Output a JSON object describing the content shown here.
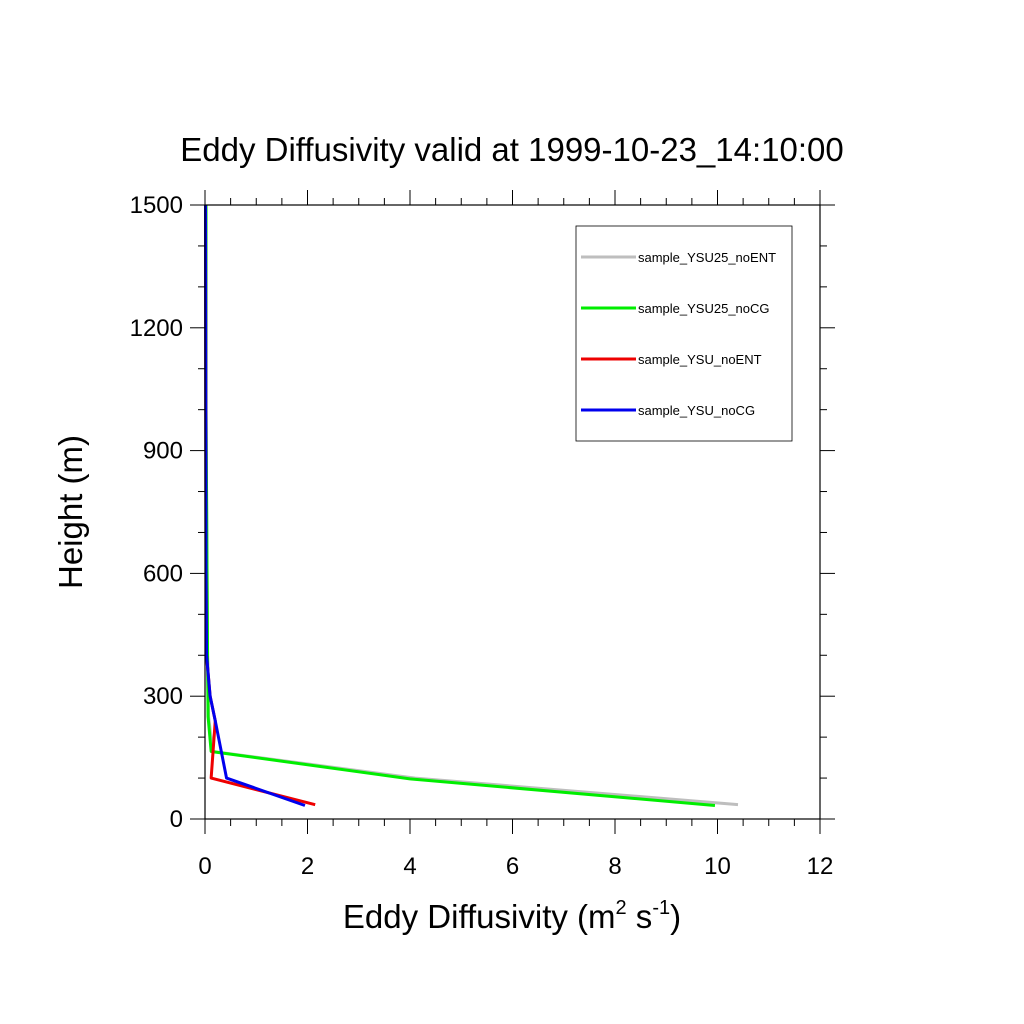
{
  "chart_data": {
    "type": "line",
    "title": "Eddy Diffusivity valid at 1999-10-23_14:10:00",
    "xlabel": {
      "base": "Eddy Diffusivity (m",
      "sup1": "2",
      "mid": " s",
      "sup2": "-1",
      "end": ")"
    },
    "ylabel": "Height (m)",
    "xlim": [
      0,
      12
    ],
    "ylim": [
      0,
      1500
    ],
    "xticks": [
      0,
      2,
      4,
      6,
      8,
      10,
      12
    ],
    "xtick_labels": [
      "0",
      "2",
      "4",
      "6",
      "8",
      "10",
      "12"
    ],
    "yticks": [
      0,
      300,
      600,
      900,
      1200,
      1500
    ],
    "ytick_labels": [
      "0",
      "300",
      "600",
      "900",
      "1200",
      "1500"
    ],
    "grid": false,
    "legend_position": "top-right",
    "series": [
      {
        "name": "sample_YSU25_noENT",
        "color": "#bebebe",
        "x": [
          10.4,
          4.1,
          0.15,
          0.07,
          0.05,
          0.04,
          0.02,
          0.02
        ],
        "y": [
          35,
          100,
          165,
          250,
          400,
          600,
          1000,
          1500
        ]
      },
      {
        "name": "sample_YSU25_noCG",
        "color": "#00ee00",
        "x": [
          9.95,
          4.0,
          0.12,
          0.06,
          0.05,
          0.04,
          0.02,
          0.02
        ],
        "y": [
          33,
          98,
          165,
          250,
          400,
          600,
          1000,
          1500
        ]
      },
      {
        "name": "sample_YSU_noENT",
        "color": "#ee0000",
        "x": [
          2.15,
          0.12,
          0.2,
          0.1,
          0.03,
          0.02,
          0.01
        ],
        "y": [
          35,
          100,
          240,
          300,
          400,
          600,
          1500
        ]
      },
      {
        "name": "sample_YSU_noCG",
        "color": "#0000ee",
        "x": [
          1.95,
          0.42,
          0.2,
          0.1,
          0.03,
          0.02,
          0.01
        ],
        "y": [
          33,
          100,
          240,
          300,
          400,
          600,
          1500
        ]
      }
    ]
  }
}
